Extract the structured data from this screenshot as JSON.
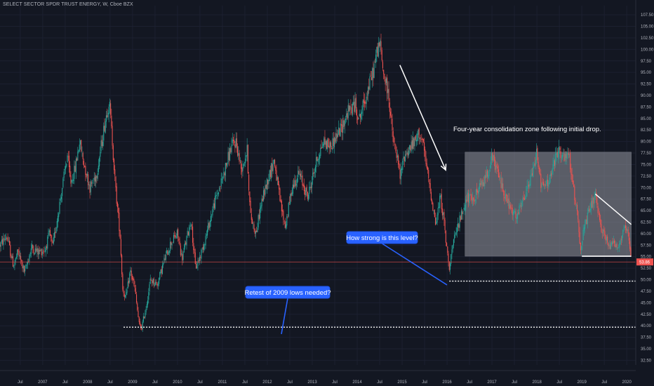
{
  "header": {
    "symbol": "SELECT SECTOR SPDR TRUST ENERGY",
    "interval": "W",
    "exchange": "Cboe BZX"
  },
  "annotations": {
    "consolidation": "Four-year consolidation zone following initial drop.",
    "strength": "How strong is this level?",
    "retest": "Retest of 2009 lows needed?"
  },
  "colors": {
    "background": "#131722",
    "up_candle": "#26a69a",
    "down_candle": "#ef5350",
    "axis_text": "#b2b5be",
    "callout": "#2962ff",
    "last_price": "#ef5350",
    "box_fill": "#9598a1"
  },
  "chart_data": {
    "type": "candlestick",
    "title": "SELECT SECTOR SPDR TRUST ENERGY, W, Cboe BZX",
    "y_axis_ticks": [
      107.5,
      105.0,
      102.5,
      100.0,
      97.5,
      95.0,
      92.5,
      90.0,
      87.5,
      85.0,
      82.5,
      80.0,
      77.5,
      75.0,
      72.5,
      70.0,
      67.5,
      65.0,
      62.5,
      60.0,
      57.5,
      55.0,
      52.5,
      50.0,
      47.5,
      45.0,
      42.5,
      40.0,
      37.5,
      35.0,
      32.5
    ],
    "y_tick_labels": [
      "107.50",
      "105.00",
      "102.50",
      "100.00",
      "97.50",
      "95.00",
      "92.50",
      "90.00",
      "87.50",
      "85.00",
      "82.50",
      "80.00",
      "77.50",
      "75.00",
      "72.50",
      "70.00",
      "67.50",
      "65.00",
      "62.50",
      "60.00",
      "57.50",
      "55.00",
      "52.50",
      "50.00",
      "47.50",
      "45.00",
      "42.50",
      "40.00",
      "37.50",
      "35.00",
      "32.50"
    ],
    "ylim": [
      31.5,
      109.5
    ],
    "x_tick_labels": [
      "Jul",
      "2007",
      "Jul",
      "2008",
      "Jul",
      "2009",
      "Jul",
      "2010",
      "Jul",
      "2011",
      "Jul",
      "2012",
      "Jul",
      "2013",
      "Jul",
      "2014",
      "Jul",
      "2015",
      "Jul",
      "2016",
      "Jul",
      "2017",
      "Jul",
      "2018",
      "Jul",
      "2019",
      "Jul",
      "2020"
    ],
    "x_tick_dates": [
      2006.5,
      2007.0,
      2007.5,
      2008.0,
      2008.5,
      2009.0,
      2009.5,
      2010.0,
      2010.5,
      2011.0,
      2011.5,
      2012.0,
      2012.5,
      2013.0,
      2013.5,
      2014.0,
      2014.5,
      2015.0,
      2015.5,
      2016.0,
      2016.5,
      2017.0,
      2017.5,
      2018.0,
      2018.5,
      2019.0,
      2019.5,
      2020.0
    ],
    "xlim": [
      2006.05,
      2020.2
    ],
    "last_price": 53.86,
    "last_price_label": "53.86",
    "price_path": [
      [
        2006.05,
        57.5
      ],
      [
        2006.2,
        59.5
      ],
      [
        2006.35,
        53.0
      ],
      [
        2006.45,
        56.0
      ],
      [
        2006.6,
        51.5
      ],
      [
        2006.75,
        57.0
      ],
      [
        2006.9,
        56.0
      ],
      [
        2007.05,
        56.5
      ],
      [
        2007.15,
        60.0
      ],
      [
        2007.22,
        57.0
      ],
      [
        2007.4,
        68.0
      ],
      [
        2007.55,
        77.0
      ],
      [
        2007.62,
        71.0
      ],
      [
        2007.72,
        74.0
      ],
      [
        2007.82,
        80.0
      ],
      [
        2007.9,
        76.0
      ],
      [
        2008.05,
        70.0
      ],
      [
        2008.2,
        73.0
      ],
      [
        2008.4,
        85.0
      ],
      [
        2008.48,
        89.0
      ],
      [
        2008.55,
        80.0
      ],
      [
        2008.62,
        70.0
      ],
      [
        2008.72,
        60.0
      ],
      [
        2008.78,
        48.0
      ],
      [
        2008.85,
        46.0
      ],
      [
        2008.95,
        52.0
      ],
      [
        2009.05,
        48.0
      ],
      [
        2009.15,
        40.0
      ],
      [
        2009.2,
        39.5
      ],
      [
        2009.3,
        44.0
      ],
      [
        2009.4,
        50.0
      ],
      [
        2009.55,
        49.0
      ],
      [
        2009.7,
        54.0
      ],
      [
        2009.85,
        58.0
      ],
      [
        2010.0,
        60.0
      ],
      [
        2010.1,
        54.5
      ],
      [
        2010.3,
        63.0
      ],
      [
        2010.4,
        52.5
      ],
      [
        2010.5,
        55.0
      ],
      [
        2010.65,
        60.0
      ],
      [
        2010.8,
        66.0
      ],
      [
        2011.0,
        72.0
      ],
      [
        2011.2,
        79.0
      ],
      [
        2011.3,
        80.0
      ],
      [
        2011.42,
        74.0
      ],
      [
        2011.55,
        78.0
      ],
      [
        2011.62,
        64.0
      ],
      [
        2011.75,
        60.0
      ],
      [
        2011.85,
        66.0
      ],
      [
        2012.0,
        71.5
      ],
      [
        2012.15,
        76.0
      ],
      [
        2012.3,
        66.0
      ],
      [
        2012.4,
        61.5
      ],
      [
        2012.55,
        70.0
      ],
      [
        2012.7,
        73.0
      ],
      [
        2012.9,
        68.0
      ],
      [
        2013.1,
        76.0
      ],
      [
        2013.25,
        80.0
      ],
      [
        2013.4,
        79.0
      ],
      [
        2013.5,
        80.5
      ],
      [
        2013.65,
        83.0
      ],
      [
        2013.8,
        86.5
      ],
      [
        2013.95,
        88.0
      ],
      [
        2014.05,
        85.0
      ],
      [
        2014.2,
        90.0
      ],
      [
        2014.35,
        95.0
      ],
      [
        2014.45,
        100.0
      ],
      [
        2014.5,
        101.5
      ],
      [
        2014.58,
        95.0
      ],
      [
        2014.7,
        90.0
      ],
      [
        2014.8,
        80.0
      ],
      [
        2014.9,
        76.0
      ],
      [
        2014.95,
        72.0
      ],
      [
        2015.05,
        77.0
      ],
      [
        2015.2,
        79.0
      ],
      [
        2015.3,
        80.0
      ],
      [
        2015.38,
        82.0
      ],
      [
        2015.45,
        80.0
      ],
      [
        2015.55,
        74.0
      ],
      [
        2015.65,
        68.0
      ],
      [
        2015.75,
        62.0
      ],
      [
        2015.85,
        68.0
      ],
      [
        2015.92,
        63.5
      ],
      [
        2016.0,
        56.0
      ],
      [
        2016.05,
        53.0
      ],
      [
        2016.12,
        57.0
      ],
      [
        2016.25,
        62.0
      ],
      [
        2016.35,
        65.0
      ],
      [
        2016.45,
        68.0
      ],
      [
        2016.55,
        67.0
      ],
      [
        2016.7,
        69.5
      ],
      [
        2016.85,
        72.0
      ],
      [
        2016.95,
        75.0
      ],
      [
        2017.0,
        76.5
      ],
      [
        2017.1,
        74.0
      ],
      [
        2017.2,
        71.0
      ],
      [
        2017.3,
        68.0
      ],
      [
        2017.45,
        64.5
      ],
      [
        2017.55,
        63.5
      ],
      [
        2017.65,
        66.0
      ],
      [
        2017.8,
        70.0
      ],
      [
        2017.9,
        73.0
      ],
      [
        2018.0,
        78.0
      ],
      [
        2018.1,
        70.0
      ],
      [
        2018.25,
        71.0
      ],
      [
        2018.38,
        75.0
      ],
      [
        2018.48,
        78.5
      ],
      [
        2018.6,
        76.0
      ],
      [
        2018.72,
        77.0
      ],
      [
        2018.8,
        70.0
      ],
      [
        2018.9,
        65.0
      ],
      [
        2018.97,
        56.5
      ],
      [
        2019.05,
        61.0
      ],
      [
        2019.2,
        66.0
      ],
      [
        2019.3,
        68.0
      ],
      [
        2019.4,
        62.0
      ],
      [
        2019.5,
        60.0
      ],
      [
        2019.6,
        57.0
      ],
      [
        2019.7,
        59.0
      ],
      [
        2019.8,
        56.5
      ],
      [
        2019.9,
        60.0
      ],
      [
        2020.0,
        61.0
      ],
      [
        2020.05,
        58.0
      ],
      [
        2020.1,
        53.86
      ]
    ],
    "drawn_lines": {
      "consolidation_box": {
        "x0": 2016.4,
        "x1": 2020.1,
        "y_top": 77.7,
        "y_bottom": 55.1
      },
      "resistance_line": {
        "x0": 2019.3,
        "y0": 68.6,
        "x1": 2020.1,
        "y1": 62.0
      },
      "support_2019": {
        "x0": 2019.0,
        "x1": 2020.1,
        "y": 55.1
      },
      "decline_arrow": {
        "x0": 2014.95,
        "y0": 96.6,
        "x1": 2015.97,
        "y1": 73.8
      },
      "level_2016_dotted": {
        "x0": 2016.05,
        "x1": 2020.2,
        "y": 49.7
      },
      "level_2009_dotted": {
        "x0": 2008.8,
        "x1": 2020.2,
        "y": 39.7
      },
      "last_price_line": {
        "y": 53.86
      }
    }
  }
}
